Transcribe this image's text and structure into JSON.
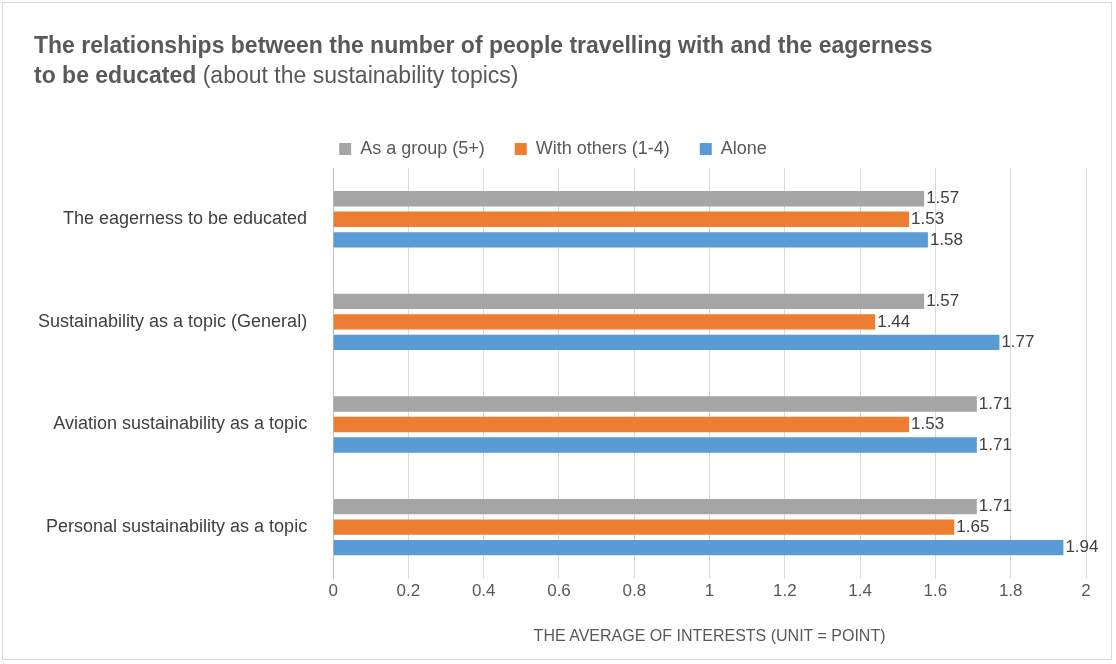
{
  "chart_data": {
    "type": "bar",
    "orientation": "horizontal",
    "title": "The relationships between the number of people travelling with and the eagerness to be educated",
    "subtitle": "(about the sustainability topics)",
    "xlabel": "THE AVERAGE OF INTERESTS (UNIT = POINT)",
    "categories": [
      "The eagerness to be educated",
      "Sustainability as a topic (General)",
      "Aviation sustainability as a topic",
      "Personal sustainability as a topic"
    ],
    "series": [
      {
        "name": "As a group (5+)",
        "color": "#a5a5a5",
        "values": [
          1.57,
          1.57,
          1.71,
          1.71
        ]
      },
      {
        "name": "With others (1-4)",
        "color": "#ed7d31",
        "values": [
          1.53,
          1.44,
          1.53,
          1.65
        ]
      },
      {
        "name": "Alone",
        "color": "#5b9bd5",
        "values": [
          1.58,
          1.77,
          1.71,
          1.94
        ]
      }
    ],
    "xlim": [
      0,
      2
    ],
    "xticks": [
      0,
      0.2,
      0.4,
      0.6,
      0.8,
      1,
      1.2,
      1.4,
      1.6,
      1.8,
      2
    ],
    "grid": "x",
    "legend": "top",
    "data_labels": true
  }
}
